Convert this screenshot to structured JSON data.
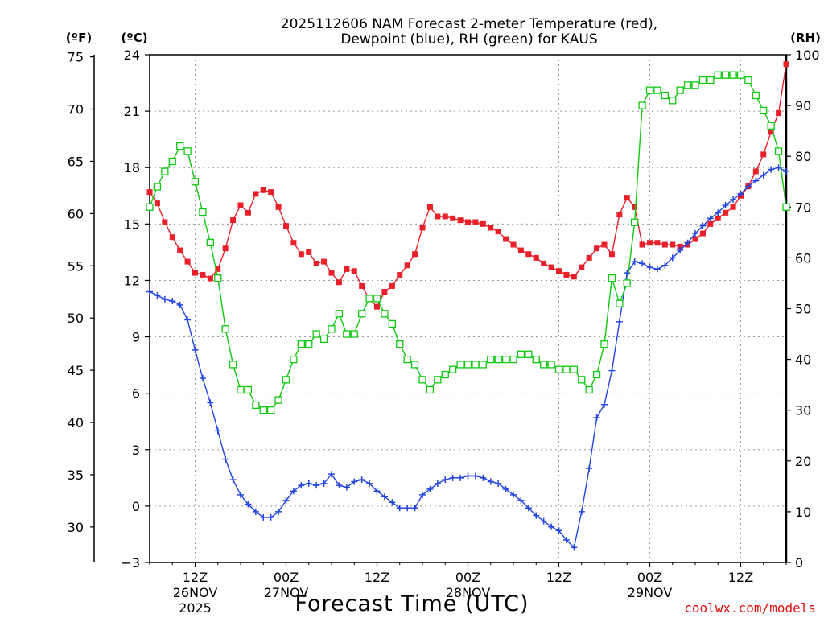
{
  "chart_data": {
    "type": "line",
    "title_line1": "2025112606 NAM Forecast 2-meter Temperature (red),",
    "title_line2": "Dewpoint (blue), RH (green) for KAUS",
    "left_outer_unit": "(ºF)",
    "left_inner_unit": "(ºC)",
    "right_unit": "(RH)",
    "xlabel": "Forecast Time (UTC)",
    "credit": "coolwx.com/models",
    "x_range_hours": [
      0,
      84
    ],
    "c_range": [
      -3,
      24
    ],
    "rh_range": [
      0,
      100
    ],
    "c_ticks": [
      -3,
      0,
      3,
      6,
      9,
      12,
      15,
      18,
      21,
      24
    ],
    "f_ticks": [
      30,
      35,
      40,
      45,
      50,
      55,
      60,
      65,
      70,
      75
    ],
    "rh_ticks": [
      0,
      10,
      20,
      30,
      40,
      50,
      60,
      70,
      80,
      90,
      100
    ],
    "x_ticks": [
      {
        "hour": 6,
        "line1": "12Z",
        "line2": "26NOV",
        "line3": "2025"
      },
      {
        "hour": 18,
        "line1": "00Z",
        "line2": "27NOV",
        "line3": ""
      },
      {
        "hour": 30,
        "line1": "12Z",
        "line2": "",
        "line3": ""
      },
      {
        "hour": 42,
        "line1": "00Z",
        "line2": "28NOV",
        "line3": ""
      },
      {
        "hour": 54,
        "line1": "12Z",
        "line2": "",
        "line3": ""
      },
      {
        "hour": 66,
        "line1": "00Z",
        "line2": "29NOV",
        "line3": ""
      },
      {
        "hour": 78,
        "line1": "12Z",
        "line2": "",
        "line3": ""
      }
    ],
    "grid": true,
    "series": [
      {
        "name": "Temperature",
        "color": "#e8202a",
        "marker": "filled-square",
        "axis": "celsius",
        "x": [
          0,
          1,
          2,
          3,
          4,
          5,
          6,
          7,
          8,
          9,
          10,
          11,
          12,
          13,
          14,
          15,
          16,
          17,
          18,
          19,
          20,
          21,
          22,
          23,
          24,
          25,
          26,
          27,
          28,
          29,
          30,
          31,
          32,
          33,
          34,
          35,
          36,
          37,
          38,
          39,
          40,
          41,
          42,
          43,
          44,
          45,
          46,
          47,
          48,
          49,
          50,
          51,
          52,
          53,
          54,
          55,
          56,
          57,
          58,
          59,
          60,
          61,
          62,
          63,
          64,
          65,
          66,
          67,
          68,
          69,
          70,
          71,
          72,
          73,
          74,
          75,
          76,
          77,
          78,
          79,
          80,
          81,
          82,
          83,
          84
        ],
        "values": [
          16.7,
          16.1,
          15.1,
          14.3,
          13.6,
          13.0,
          12.4,
          12.3,
          12.1,
          12.6,
          13.7,
          15.2,
          16.0,
          15.6,
          16.6,
          16.8,
          16.7,
          15.9,
          14.9,
          14.0,
          13.4,
          13.5,
          12.9,
          13.0,
          12.4,
          11.9,
          12.6,
          12.5,
          11.7,
          11.0,
          10.6,
          11.4,
          11.7,
          12.3,
          12.8,
          13.4,
          14.8,
          15.9,
          15.4,
          15.4,
          15.3,
          15.2,
          15.1,
          15.1,
          15.0,
          14.8,
          14.6,
          14.2,
          13.9,
          13.6,
          13.4,
          13.2,
          12.9,
          12.7,
          12.5,
          12.3,
          12.2,
          12.7,
          13.2,
          13.7,
          13.9,
          13.4,
          15.5,
          16.4,
          15.9,
          13.9,
          14.0,
          14.0,
          13.9,
          13.9,
          13.8,
          13.9,
          14.2,
          14.5,
          15.0,
          15.3,
          15.6,
          15.9,
          16.5,
          17.0,
          17.8,
          18.7,
          19.9,
          20.9,
          23.5
        ]
      },
      {
        "name": "Dewpoint",
        "color": "#2244e0",
        "marker": "plus",
        "axis": "celsius",
        "x": [
          0,
          1,
          2,
          3,
          4,
          5,
          6,
          7,
          8,
          9,
          10,
          11,
          12,
          13,
          14,
          15,
          16,
          17,
          18,
          19,
          20,
          21,
          22,
          23,
          24,
          25,
          26,
          27,
          28,
          29,
          30,
          31,
          32,
          33,
          34,
          35,
          36,
          37,
          38,
          39,
          40,
          41,
          42,
          43,
          44,
          45,
          46,
          47,
          48,
          49,
          50,
          51,
          52,
          53,
          54,
          55,
          56,
          57,
          58,
          59,
          60,
          61,
          62,
          63,
          64,
          65,
          66,
          67,
          68,
          69,
          70,
          71,
          72,
          73,
          74,
          75,
          76,
          77,
          78,
          79,
          80,
          81,
          82,
          83,
          84
        ],
        "values": [
          11.4,
          11.2,
          11.0,
          10.9,
          10.7,
          9.9,
          8.3,
          6.8,
          5.5,
          4.0,
          2.5,
          1.4,
          0.6,
          0.1,
          -0.3,
          -0.6,
          -0.6,
          -0.3,
          0.3,
          0.8,
          1.1,
          1.2,
          1.1,
          1.2,
          1.7,
          1.1,
          1.0,
          1.3,
          1.4,
          1.2,
          0.8,
          0.5,
          0.2,
          -0.1,
          -0.1,
          -0.1,
          0.6,
          0.9,
          1.2,
          1.4,
          1.5,
          1.5,
          1.6,
          1.6,
          1.5,
          1.3,
          1.2,
          0.9,
          0.6,
          0.3,
          -0.1,
          -0.5,
          -0.8,
          -1.1,
          -1.3,
          -1.8,
          -2.2,
          -0.3,
          2.0,
          4.7,
          5.4,
          7.2,
          9.8,
          12.4,
          13.0,
          12.9,
          12.7,
          12.6,
          12.8,
          13.2,
          13.6,
          14.0,
          14.5,
          14.9,
          15.3,
          15.6,
          16.0,
          16.3,
          16.6,
          17.0,
          17.3,
          17.6,
          17.9,
          18.0,
          17.8
        ]
      },
      {
        "name": "RH",
        "color": "#10c810",
        "marker": "open-square",
        "axis": "rh",
        "x": [
          0,
          1,
          2,
          3,
          4,
          5,
          6,
          7,
          8,
          9,
          10,
          11,
          12,
          13,
          14,
          15,
          16,
          17,
          18,
          19,
          20,
          21,
          22,
          23,
          24,
          25,
          26,
          27,
          28,
          29,
          30,
          31,
          32,
          33,
          34,
          35,
          36,
          37,
          38,
          39,
          40,
          41,
          42,
          43,
          44,
          45,
          46,
          47,
          48,
          49,
          50,
          51,
          52,
          53,
          54,
          55,
          56,
          57,
          58,
          59,
          60,
          61,
          62,
          63,
          64,
          65,
          66,
          67,
          68,
          69,
          70,
          71,
          72,
          73,
          74,
          75,
          76,
          77,
          78,
          79,
          80,
          81,
          82,
          83,
          84
        ],
        "values": [
          70,
          74,
          77,
          79,
          82,
          81,
          75,
          69,
          63,
          56,
          46,
          39,
          34,
          34,
          31,
          30,
          30,
          32,
          36,
          40,
          43,
          43,
          45,
          44,
          46,
          49,
          45,
          45,
          49,
          52,
          52,
          49,
          47,
          43,
          40,
          39,
          36,
          34,
          36,
          37,
          38,
          39,
          39,
          39,
          39,
          40,
          40,
          40,
          40,
          41,
          41,
          40,
          39,
          39,
          38,
          38,
          38,
          36,
          34,
          37,
          43,
          56,
          51,
          55,
          67,
          90,
          93,
          93,
          92,
          91,
          93,
          94,
          94,
          95,
          95,
          96,
          96,
          96,
          96,
          95,
          92,
          89,
          86,
          81,
          70
        ]
      }
    ]
  }
}
